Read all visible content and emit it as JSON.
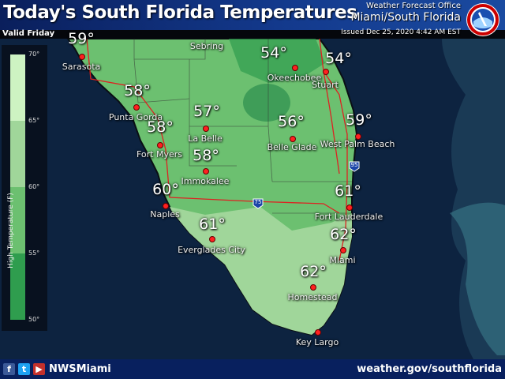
{
  "header": {
    "title": "Today's South Florida Temperatures",
    "valid": "Valid Friday",
    "office_line1": "Weather Forecast Office",
    "office_line2": "Miami/South Florida",
    "issued": "Issued Dec 25, 2020 4:42 AM EST",
    "logo": "NOAA National Weather Service seal"
  },
  "legend": {
    "title": "High Temperature (F)",
    "ticks": [
      "70°",
      "65°",
      "60°",
      "55°",
      "50°"
    ],
    "bins": [
      {
        "range": "65-70",
        "color": "#cdf3c2"
      },
      {
        "range": "60-65",
        "color": "#a0d69a"
      },
      {
        "range": "55-60",
        "color": "#6cc070"
      },
      {
        "range": "50-55",
        "color": "#2f9d4e"
      }
    ]
  },
  "cities": [
    {
      "name": "Sarasota",
      "temp": "59°"
    },
    {
      "name": "Sebring",
      "temp": ""
    },
    {
      "name": "Okeechobee",
      "temp": "54°"
    },
    {
      "name": "Stuart",
      "temp": "54°"
    },
    {
      "name": "Punta Gorda",
      "temp": "58°"
    },
    {
      "name": "La Belle",
      "temp": "57°"
    },
    {
      "name": "Belle Glade",
      "temp": "56°"
    },
    {
      "name": "West Palm Beach",
      "temp": "59°"
    },
    {
      "name": "Fort Myers",
      "temp": "58°"
    },
    {
      "name": "Immokalee",
      "temp": "58°"
    },
    {
      "name": "Naples",
      "temp": "60°"
    },
    {
      "name": "Fort Lauderdale",
      "temp": "61°"
    },
    {
      "name": "Everglades City",
      "temp": "61°"
    },
    {
      "name": "Miami",
      "temp": "62°"
    },
    {
      "name": "Homestead",
      "temp": "62°"
    },
    {
      "name": "Key Largo",
      "temp": ""
    }
  ],
  "highways": [
    "75",
    "95"
  ],
  "footer": {
    "handle": "NWSMiami",
    "website": "weather.gov/southflorida",
    "social_icons": [
      "facebook-icon",
      "twitter-icon",
      "youtube-icon"
    ]
  }
}
